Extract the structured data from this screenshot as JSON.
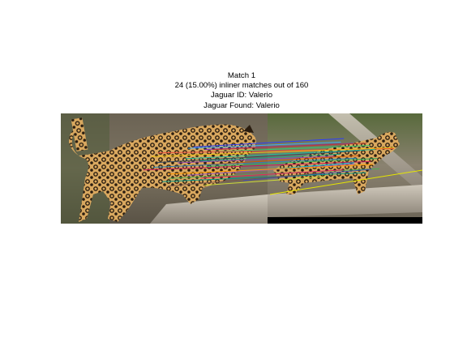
{
  "title": {
    "line1": "Match 1",
    "line2": "24 (15.00%) inliner matches out of 160",
    "line3": "Jaguar ID: Valerio",
    "line4": "Jaguar Found: Valerio"
  },
  "match": {
    "inliers": 24,
    "total": 160,
    "percent": 15.0,
    "jaguar_id": "Valerio",
    "jaguar_found": "Valerio"
  },
  "colors": {
    "background": "#ffffff",
    "bottom_pad": "#000000",
    "match_lines": [
      "#2a3cff",
      "#3fa9f5",
      "#7a2bd1",
      "#c0392b",
      "#2ecc71",
      "#e74c3c",
      "#f1c40f",
      "#1abc9c",
      "#34495e",
      "#16a085",
      "#8e44ad",
      "#d35400",
      "#27ae60",
      "#2980b9",
      "#c2185b",
      "#00bcd4",
      "#9b59b6",
      "#ff9800",
      "#4caf50",
      "#3f51b5",
      "#e91e63",
      "#009688",
      "#795548",
      "#cddc39"
    ]
  }
}
